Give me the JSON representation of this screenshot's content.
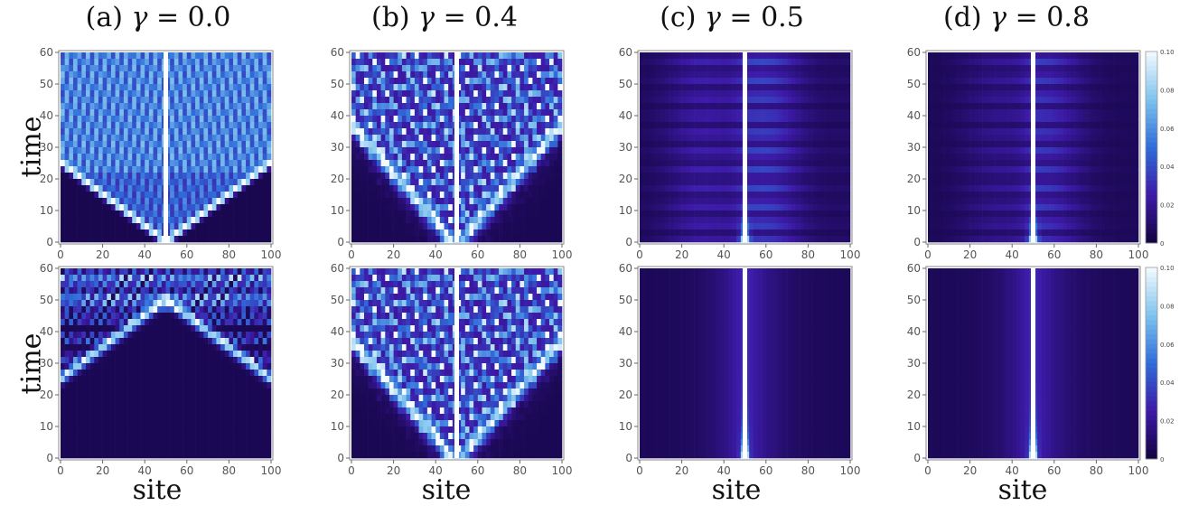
{
  "figure": {
    "column_titles": [
      {
        "prefix": "(a)",
        "symbol": "γ",
        "rest": " = 0.0"
      },
      {
        "prefix": "(b)",
        "symbol": "γ",
        "rest": " = 0.4"
      },
      {
        "prefix": "(c)",
        "symbol": "γ",
        "rest": " = 0.5"
      },
      {
        "prefix": "(d)",
        "symbol": "γ",
        "rest": " = 0.8"
      }
    ],
    "ylabel": "time",
    "xlabel": "site"
  },
  "chart_data": {
    "type": "heatmap",
    "gamma_values": [
      0.0,
      0.4,
      0.5,
      0.8
    ],
    "rows": 2,
    "x_ticks": [
      0,
      20,
      40,
      60,
      80,
      100
    ],
    "y_ticks": [
      0,
      10,
      20,
      30,
      40,
      50,
      60
    ],
    "xlim": [
      0,
      100
    ],
    "ylim": [
      0,
      60
    ],
    "colorbar": {
      "ticks": [
        0,
        0.02,
        0.04,
        0.06,
        0.08,
        0.1
      ],
      "tick_labels": [
        "0",
        "0.02",
        "0.04",
        "0.06",
        "0.08",
        "0.10"
      ],
      "range": [
        0,
        0.1
      ],
      "colors": [
        "#12043f",
        "#3d1aa8",
        "#2f6cd9",
        "#7fc3ee",
        "#f4fbff"
      ]
    },
    "panels": [
      {
        "row": 0,
        "gamma": 0.0,
        "pattern": "light-cone",
        "cone_velocity": 2.0,
        "center_site": 50,
        "center_line": true
      },
      {
        "row": 0,
        "gamma": 0.4,
        "pattern": "chaotic-cone",
        "cone_velocity": 1.3,
        "center_site": 50,
        "center_line": true
      },
      {
        "row": 0,
        "gamma": 0.5,
        "pattern": "localized",
        "cone_velocity": 0.6,
        "center_site": 50,
        "center_line": true
      },
      {
        "row": 0,
        "gamma": 0.8,
        "pattern": "localized",
        "cone_velocity": 0.3,
        "center_site": 50,
        "center_line": true
      },
      {
        "row": 1,
        "gamma": 0.0,
        "pattern": "light-cone-delayed",
        "cone_velocity": 2.0,
        "center_site": 50,
        "center_line": false
      },
      {
        "row": 1,
        "gamma": 0.4,
        "pattern": "chaotic-cone",
        "cone_velocity": 1.3,
        "center_site": 50,
        "center_line": true
      },
      {
        "row": 1,
        "gamma": 0.5,
        "pattern": "stripes",
        "cone_velocity": 0.2,
        "center_site": 50,
        "center_line": true
      },
      {
        "row": 1,
        "gamma": 0.8,
        "pattern": "stripes",
        "cone_velocity": 0.2,
        "center_site": 50,
        "center_line": true
      }
    ]
  }
}
